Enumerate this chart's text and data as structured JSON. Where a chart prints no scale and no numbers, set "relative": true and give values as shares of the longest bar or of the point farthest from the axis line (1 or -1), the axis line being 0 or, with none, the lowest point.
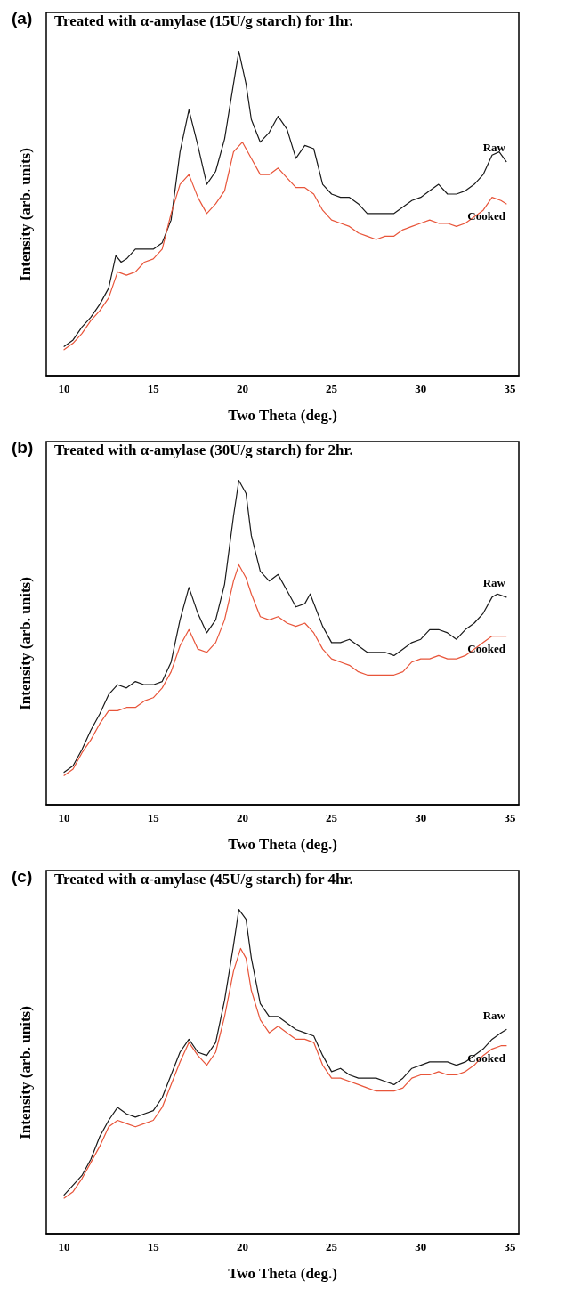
{
  "chart_data": [
    {
      "type": "line",
      "title": "(a)",
      "subtitle": "Treated with α-amylase (15U/g starch) for 1hr.",
      "xlabel": "Two Theta (deg.)",
      "ylabel": "Intensity (arb. units)",
      "relative": true,
      "xlim": [
        9,
        35.5
      ],
      "xticks": [
        10,
        15,
        20,
        25,
        30,
        35
      ],
      "grid": false,
      "legend": false,
      "marker": "none",
      "line_style": "solid",
      "series": [
        {
          "name": "Raw",
          "color": "#1a1a1a",
          "x": [
            10,
            10.5,
            11,
            11.5,
            12,
            12.5,
            12.9,
            13.2,
            13.5,
            14,
            14.5,
            15,
            15.5,
            16,
            16.5,
            17,
            17.5,
            18,
            18.5,
            19,
            19.5,
            19.8,
            20.2,
            20.5,
            21,
            21.5,
            22,
            22.5,
            23,
            23.5,
            24,
            24.5,
            25,
            25.5,
            26,
            26.5,
            27,
            27.5,
            28,
            28.5,
            29,
            29.5,
            30,
            30.5,
            31,
            31.5,
            32,
            32.5,
            33,
            33.5,
            34,
            34.4,
            34.8
          ],
          "values": [
            0.09,
            0.11,
            0.15,
            0.18,
            0.22,
            0.27,
            0.37,
            0.35,
            0.36,
            0.39,
            0.39,
            0.39,
            0.41,
            0.48,
            0.69,
            0.82,
            0.71,
            0.59,
            0.63,
            0.73,
            0.9,
            1.0,
            0.9,
            0.79,
            0.72,
            0.75,
            0.8,
            0.76,
            0.67,
            0.71,
            0.7,
            0.59,
            0.56,
            0.55,
            0.55,
            0.53,
            0.5,
            0.5,
            0.5,
            0.5,
            0.52,
            0.54,
            0.55,
            0.57,
            0.59,
            0.56,
            0.56,
            0.57,
            0.59,
            0.62,
            0.68,
            0.69,
            0.66
          ]
        },
        {
          "name": "Cooked",
          "color": "#e8553a",
          "x": [
            10,
            10.5,
            11,
            11.5,
            12,
            12.5,
            13,
            13.5,
            14,
            14.5,
            15,
            15.5,
            16,
            16.5,
            17,
            17.5,
            18,
            18.5,
            19,
            19.5,
            20,
            20.5,
            21,
            21.5,
            22,
            22.5,
            23,
            23.5,
            24,
            24.5,
            25,
            25.5,
            26,
            26.5,
            27,
            27.5,
            28,
            28.5,
            29,
            29.5,
            30,
            30.5,
            31,
            31.5,
            32,
            32.5,
            33,
            33.5,
            34,
            34.5,
            34.8
          ],
          "values": [
            0.08,
            0.1,
            0.13,
            0.17,
            0.2,
            0.24,
            0.32,
            0.31,
            0.32,
            0.35,
            0.36,
            0.39,
            0.5,
            0.59,
            0.62,
            0.55,
            0.5,
            0.53,
            0.57,
            0.69,
            0.72,
            0.67,
            0.62,
            0.62,
            0.64,
            0.61,
            0.58,
            0.58,
            0.56,
            0.51,
            0.48,
            0.47,
            0.46,
            0.44,
            0.43,
            0.42,
            0.43,
            0.43,
            0.45,
            0.46,
            0.47,
            0.48,
            0.47,
            0.47,
            0.46,
            0.47,
            0.49,
            0.51,
            0.55,
            0.54,
            0.53
          ]
        }
      ]
    },
    {
      "type": "line",
      "title": "(b)",
      "subtitle": "Treated with α-amylase (30U/g starch) for 2hr.",
      "xlabel": "Two Theta (deg.)",
      "ylabel": "Intensity (arb. units)",
      "relative": true,
      "xlim": [
        9,
        35.5
      ],
      "xticks": [
        10,
        15,
        20,
        25,
        30,
        35
      ],
      "grid": false,
      "legend": false,
      "marker": "none",
      "line_style": "solid",
      "series": [
        {
          "name": "Raw",
          "color": "#1a1a1a",
          "x": [
            10,
            10.5,
            11,
            11.5,
            12,
            12.5,
            13,
            13.5,
            14,
            14.5,
            15,
            15.5,
            16,
            16.5,
            17,
            17.5,
            18,
            18.5,
            19,
            19.5,
            19.8,
            20.2,
            20.5,
            21,
            21.5,
            22,
            22.5,
            23,
            23.5,
            23.8,
            24.5,
            25,
            25.5,
            26,
            26.5,
            27,
            27.5,
            28,
            28.5,
            29,
            29.5,
            30,
            30.5,
            31,
            31.5,
            32,
            32.5,
            33,
            33.5,
            34,
            34.3,
            34.8
          ],
          "values": [
            0.1,
            0.12,
            0.17,
            0.23,
            0.28,
            0.34,
            0.37,
            0.36,
            0.38,
            0.37,
            0.37,
            0.38,
            0.44,
            0.57,
            0.67,
            0.59,
            0.53,
            0.57,
            0.68,
            0.89,
            1.0,
            0.96,
            0.83,
            0.72,
            0.69,
            0.71,
            0.66,
            0.61,
            0.62,
            0.65,
            0.55,
            0.5,
            0.5,
            0.51,
            0.49,
            0.47,
            0.47,
            0.47,
            0.46,
            0.48,
            0.5,
            0.51,
            0.54,
            0.54,
            0.53,
            0.51,
            0.54,
            0.56,
            0.59,
            0.64,
            0.65,
            0.64
          ]
        },
        {
          "name": "Cooked",
          "color": "#e8553a",
          "x": [
            10,
            10.5,
            11,
            11.5,
            12,
            12.5,
            13,
            13.5,
            14,
            14.5,
            15,
            15.5,
            16,
            16.5,
            17,
            17.5,
            18,
            18.5,
            19,
            19.5,
            19.8,
            20.2,
            20.5,
            21,
            21.5,
            22,
            22.5,
            23,
            23.5,
            24,
            24.5,
            25,
            25.5,
            26,
            26.5,
            27,
            27.5,
            28,
            28.5,
            29,
            29.5,
            30,
            30.5,
            31,
            31.5,
            32,
            32.5,
            33,
            33.5,
            34,
            34.8
          ],
          "values": [
            0.09,
            0.11,
            0.16,
            0.2,
            0.25,
            0.29,
            0.29,
            0.3,
            0.3,
            0.32,
            0.33,
            0.36,
            0.41,
            0.49,
            0.54,
            0.48,
            0.47,
            0.5,
            0.57,
            0.69,
            0.74,
            0.7,
            0.65,
            0.58,
            0.57,
            0.58,
            0.56,
            0.55,
            0.56,
            0.53,
            0.48,
            0.45,
            0.44,
            0.43,
            0.41,
            0.4,
            0.4,
            0.4,
            0.4,
            0.41,
            0.44,
            0.45,
            0.45,
            0.46,
            0.45,
            0.45,
            0.46,
            0.48,
            0.5,
            0.52,
            0.52
          ]
        }
      ]
    },
    {
      "type": "line",
      "title": "(c)",
      "subtitle": "Treated with α-amylase (45U/g starch) for 4hr.",
      "xlabel": "Two Theta (deg.)",
      "ylabel": "Intensity (arb. units)",
      "relative": true,
      "xlim": [
        9,
        35.5
      ],
      "xticks": [
        10,
        15,
        20,
        25,
        30,
        35
      ],
      "grid": false,
      "legend": false,
      "marker": "none",
      "line_style": "solid",
      "series": [
        {
          "name": "Raw",
          "color": "#1a1a1a",
          "x": [
            10,
            10.5,
            11,
            11.5,
            12,
            12.5,
            13,
            13.5,
            14,
            14.5,
            15,
            15.5,
            16,
            16.5,
            17,
            17.5,
            18,
            18.5,
            19,
            19.5,
            19.8,
            20.2,
            20.5,
            21,
            21.5,
            22,
            22.5,
            23,
            23.5,
            24,
            24.5,
            25,
            25.5,
            26,
            26.5,
            27,
            27.5,
            28,
            28.5,
            29,
            29.5,
            30,
            30.5,
            31,
            31.5,
            32,
            32.5,
            33,
            33.5,
            34,
            34.5,
            34.8
          ],
          "values": [
            0.12,
            0.15,
            0.18,
            0.23,
            0.3,
            0.35,
            0.39,
            0.37,
            0.36,
            0.37,
            0.38,
            0.42,
            0.49,
            0.56,
            0.6,
            0.56,
            0.55,
            0.59,
            0.72,
            0.89,
            1.0,
            0.97,
            0.85,
            0.71,
            0.67,
            0.67,
            0.65,
            0.63,
            0.62,
            0.61,
            0.55,
            0.5,
            0.51,
            0.49,
            0.48,
            0.48,
            0.48,
            0.47,
            0.46,
            0.48,
            0.51,
            0.52,
            0.53,
            0.53,
            0.53,
            0.52,
            0.53,
            0.55,
            0.57,
            0.6,
            0.62,
            0.63
          ]
        },
        {
          "name": "Cooked",
          "color": "#e8553a",
          "x": [
            10,
            10.5,
            11,
            11.5,
            12,
            12.5,
            13,
            13.5,
            14,
            14.5,
            15,
            15.5,
            16,
            16.5,
            17,
            17.5,
            18,
            18.5,
            19,
            19.5,
            19.9,
            20.2,
            20.5,
            21,
            21.5,
            22,
            22.5,
            23,
            23.5,
            24,
            24.5,
            25,
            25.5,
            26,
            26.5,
            27,
            27.5,
            28,
            28.5,
            29,
            29.5,
            30,
            30.5,
            31,
            31.5,
            32,
            32.5,
            33,
            33.5,
            34,
            34.5,
            34.8
          ],
          "values": [
            0.11,
            0.13,
            0.17,
            0.22,
            0.27,
            0.33,
            0.35,
            0.34,
            0.33,
            0.34,
            0.35,
            0.39,
            0.46,
            0.53,
            0.59,
            0.55,
            0.52,
            0.56,
            0.67,
            0.81,
            0.88,
            0.85,
            0.75,
            0.66,
            0.62,
            0.64,
            0.62,
            0.6,
            0.6,
            0.59,
            0.52,
            0.48,
            0.48,
            0.47,
            0.46,
            0.45,
            0.44,
            0.44,
            0.44,
            0.45,
            0.48,
            0.49,
            0.49,
            0.5,
            0.49,
            0.49,
            0.5,
            0.52,
            0.55,
            0.57,
            0.58,
            0.58
          ]
        }
      ]
    }
  ]
}
